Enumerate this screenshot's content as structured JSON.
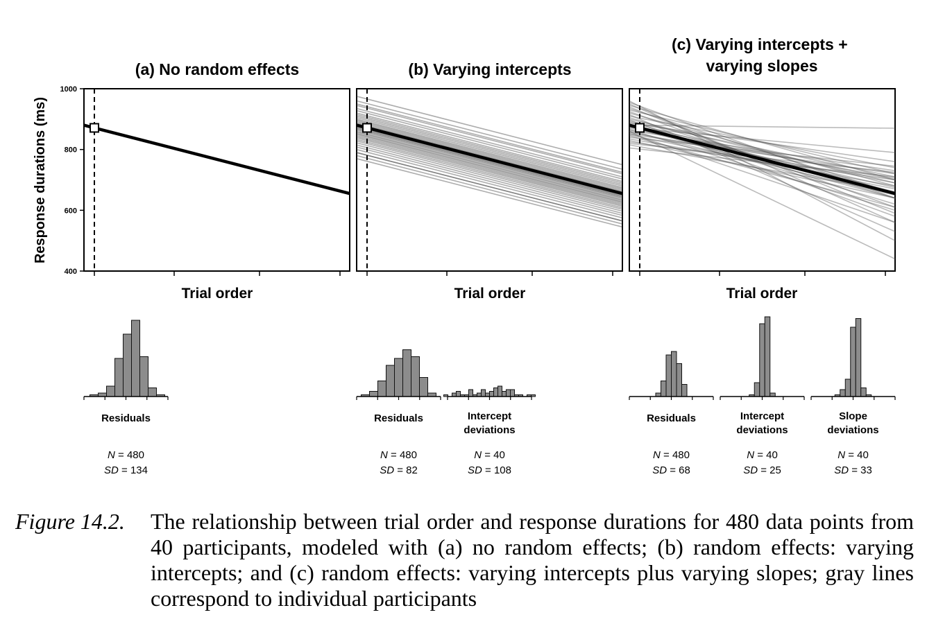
{
  "caption": {
    "label": "Figure 14.2.",
    "text": "The relationship between trial order and response durations for 480 data points from 40 participants, modeled with (a) no random effects; (b) random effects: varying intercepts; and (c) random effects: varying intercepts plus varying slopes; gray lines correspond to individual participants"
  },
  "chart_data": [
    {
      "type": "line",
      "title": "(a) No random effects",
      "xlabel": "Trial order",
      "ylabel": "Response durations (ms)",
      "ylim": [
        400,
        1000
      ],
      "yticks": [
        400,
        600,
        800,
        1000
      ],
      "xlim": [
        0,
        1
      ],
      "fixed_line": {
        "x": [
          0,
          1
        ],
        "y": [
          880,
          655
        ]
      },
      "participant_lines": [],
      "histograms": [
        {
          "label": "Residuals",
          "counts": [
            1,
            2,
            6,
            22,
            36,
            44,
            23,
            5,
            1
          ],
          "n_label": "N = 480",
          "sd_label": "SD = 134"
        }
      ]
    },
    {
      "type": "line",
      "title": "(b) Varying intercepts",
      "xlabel": "Trial order",
      "ylim": [
        400,
        1000
      ],
      "xlim": [
        0,
        1
      ],
      "fixed_line": {
        "x": [
          0,
          1
        ],
        "y": [
          880,
          655
        ]
      },
      "participant_intercepts": [
        975,
        960,
        950,
        945,
        935,
        928,
        920,
        915,
        910,
        905,
        900,
        896,
        892,
        888,
        885,
        882,
        880,
        878,
        875,
        872,
        870,
        867,
        864,
        860,
        857,
        853,
        850,
        846,
        842,
        838,
        833,
        828,
        822,
        815,
        808,
        800,
        790,
        780,
        790,
        770
      ],
      "participant_slope": -225,
      "histograms": [
        {
          "label": "Residuals",
          "counts": [
            1,
            3,
            9,
            18,
            22,
            27,
            23,
            11,
            2
          ],
          "n_label": "N = 480",
          "sd_label": "SD = 82"
        },
        {
          "label": "Intercept deviations",
          "counts": [
            1,
            0,
            2,
            3,
            1,
            1,
            4,
            1,
            2,
            4,
            2,
            3,
            5,
            6,
            3,
            4,
            4,
            1,
            1,
            0,
            1,
            1
          ],
          "n_label": "N = 40",
          "sd_label": "SD = 108"
        }
      ]
    },
    {
      "type": "line",
      "title": "(c) Varying intercepts + varying slopes",
      "xlabel": "Trial order",
      "ylim": [
        400,
        1000
      ],
      "xlim": [
        0,
        1
      ],
      "fixed_line": {
        "x": [
          0,
          1
        ],
        "y": [
          880,
          655
        ]
      },
      "participant_lines_y": [
        [
          960,
          500
        ],
        [
          955,
          640
        ],
        [
          950,
          560
        ],
        [
          945,
          700
        ],
        [
          940,
          590
        ],
        [
          935,
          655
        ],
        [
          930,
          720
        ],
        [
          925,
          610
        ],
        [
          920,
          680
        ],
        [
          915,
          530
        ],
        [
          910,
          740
        ],
        [
          905,
          640
        ],
        [
          900,
          690
        ],
        [
          897,
          580
        ],
        [
          893,
          710
        ],
        [
          890,
          660
        ],
        [
          887,
          760
        ],
        [
          884,
          620
        ],
        [
          881,
          700
        ],
        [
          878,
          675
        ],
        [
          875,
          640
        ],
        [
          872,
          790
        ],
        [
          869,
          705
        ],
        [
          866,
          600
        ],
        [
          863,
          730
        ],
        [
          860,
          650
        ],
        [
          857,
          690
        ],
        [
          854,
          560
        ],
        [
          851,
          720
        ],
        [
          848,
          670
        ],
        [
          845,
          610
        ],
        [
          840,
          745
        ],
        [
          835,
          680
        ],
        [
          830,
          640
        ],
        [
          825,
          700
        ],
        [
          820,
          725
        ],
        [
          880,
          870
        ],
        [
          860,
          440
        ],
        [
          815,
          660
        ],
        [
          805,
          710
        ]
      ],
      "histograms": [
        {
          "label": "Residuals",
          "counts": [
            2,
            9,
            24,
            26,
            19,
            7
          ],
          "n_label": "N = 480",
          "sd_label": "SD = 68"
        },
        {
          "label": "Intercept deviations",
          "counts": [
            1,
            8,
            42,
            46,
            2
          ],
          "n_label": "N = 40",
          "sd_label": "SD = 25"
        },
        {
          "label": "Slope deviations",
          "counts": [
            1,
            4,
            10,
            40,
            45,
            5,
            1
          ],
          "n_label": "N = 40",
          "sd_label": "SD = 33"
        }
      ]
    }
  ],
  "colors": {
    "fixed_line": "#000000",
    "participant_line_b": "#4a4a4a",
    "participant_line_c": "#555555",
    "bar_fill": "#8c8c8c",
    "bar_stroke": "#111111"
  }
}
